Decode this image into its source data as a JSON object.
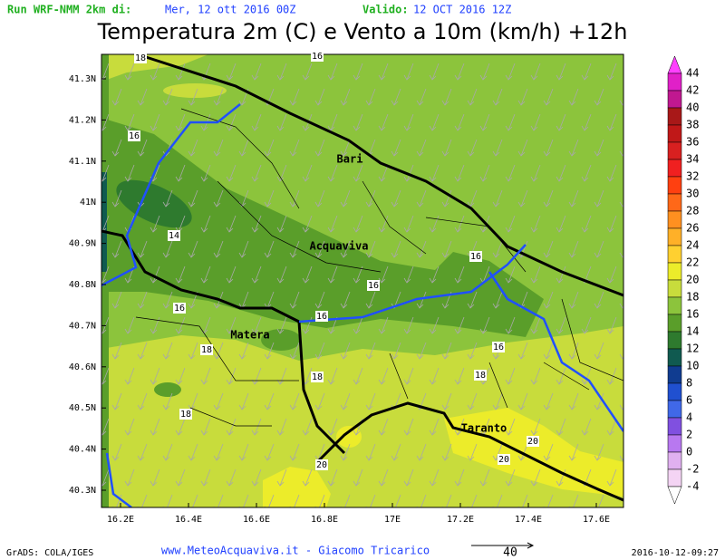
{
  "header": {
    "run_label": "Run WRF-NMM 2km di:",
    "run_date": "Mer, 12 ott 2016 00Z",
    "valid_label": "Valido:",
    "valid_date": "12 OCT 2016 12Z",
    "title": "Temperatura 2m (C) e Vento a 10m (km/h) +12h"
  },
  "map": {
    "lon_ticks": [
      {
        "value": 16.2,
        "label": "16.2E"
      },
      {
        "value": 16.4,
        "label": "16.4E"
      },
      {
        "value": 16.6,
        "label": "16.6E"
      },
      {
        "value": 16.8,
        "label": "16.8E"
      },
      {
        "value": 17.0,
        "label": "17E"
      },
      {
        "value": 17.2,
        "label": "17.2E"
      },
      {
        "value": 17.4,
        "label": "17.4E"
      },
      {
        "value": 17.6,
        "label": "17.6E"
      }
    ],
    "lat_ticks": [
      {
        "value": 41.3,
        "label": "41.3N"
      },
      {
        "value": 41.2,
        "label": "41.2N"
      },
      {
        "value": 41.1,
        "label": "41.1N"
      },
      {
        "value": 41.0,
        "label": "41N"
      },
      {
        "value": 40.9,
        "label": "40.9N"
      },
      {
        "value": 40.8,
        "label": "40.8N"
      },
      {
        "value": 40.7,
        "label": "40.7N"
      },
      {
        "value": 40.6,
        "label": "40.6N"
      },
      {
        "value": 40.5,
        "label": "40.5N"
      },
      {
        "value": 40.4,
        "label": "40.4N"
      },
      {
        "value": 40.3,
        "label": "40.3N"
      }
    ],
    "cities": [
      "Bari",
      "Acquaviva",
      "Matera",
      "Taranto"
    ],
    "contour_labels": [
      18,
      16,
      16,
      14,
      16,
      16,
      16,
      16,
      18,
      16,
      18,
      18,
      18,
      20,
      20,
      20
    ]
  },
  "colorbar": {
    "levels": [
      44,
      42,
      40,
      38,
      36,
      34,
      32,
      30,
      28,
      26,
      24,
      22,
      20,
      18,
      16,
      14,
      12,
      10,
      8,
      6,
      4,
      2,
      0,
      -2,
      -4
    ],
    "colors": [
      "#ff40ff",
      "#e020c8",
      "#c01890",
      "#a81818",
      "#c01818",
      "#d82020",
      "#f02020",
      "#ff4010",
      "#ff6818",
      "#ff9020",
      "#ffb028",
      "#ffd030",
      "#ecec2a",
      "#c8dc3c",
      "#8cc43c",
      "#5a9e2a",
      "#2e7a2e",
      "#105a50",
      "#103c90",
      "#2050d0",
      "#4068e8",
      "#8050e0",
      "#b878f0",
      "#e0b0f0",
      "#f4d4f4",
      "#ffffff"
    ]
  },
  "footer": {
    "software": "GrADS: COLA/IGES",
    "credit": "www.MeteoAcquaviva.it - Giacomo Tricarico",
    "vector_scale": "40",
    "timestamp": "2016-10-12-09:27"
  }
}
